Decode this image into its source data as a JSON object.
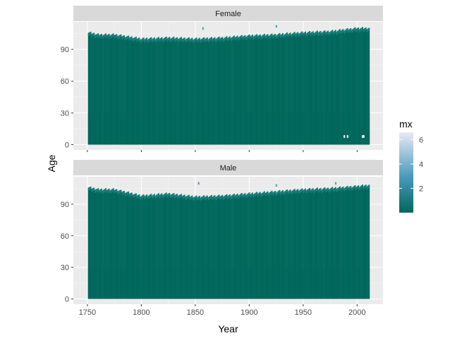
{
  "chart_data": {
    "type": "heatmap",
    "xlabel": "Year",
    "ylabel": "Age",
    "x_range": [
      1751,
      2011
    ],
    "xlim": [
      1737,
      2024
    ],
    "ylim": [
      -5,
      116
    ],
    "x_ticks": [
      1750,
      1800,
      1850,
      1900,
      1950,
      2000
    ],
    "y_ticks": [
      0,
      30,
      60,
      90
    ],
    "grid": true,
    "facets": [
      {
        "name": "Female",
        "top_age_profile": [
          [
            1751,
            106
          ],
          [
            1760,
            104
          ],
          [
            1775,
            104
          ],
          [
            1800,
            100
          ],
          [
            1825,
            101
          ],
          [
            1850,
            100
          ],
          [
            1875,
            101
          ],
          [
            1900,
            103
          ],
          [
            1925,
            104
          ],
          [
            1950,
            106
          ],
          [
            1975,
            107
          ],
          [
            2000,
            110
          ],
          [
            2011,
            110
          ]
        ],
        "sparse_cells": [
          [
            1988,
            8
          ],
          [
            1991,
            8
          ],
          [
            2005,
            8
          ],
          [
            2006,
            8
          ],
          [
            1857,
            110
          ],
          [
            1925,
            112
          ]
        ]
      },
      {
        "name": "Male",
        "top_age_profile": [
          [
            1751,
            106
          ],
          [
            1760,
            104
          ],
          [
            1775,
            104
          ],
          [
            1800,
            98
          ],
          [
            1825,
            100
          ],
          [
            1850,
            97
          ],
          [
            1875,
            98
          ],
          [
            1900,
            100
          ],
          [
            1925,
            102
          ],
          [
            1950,
            104
          ],
          [
            1975,
            105
          ],
          [
            2000,
            107
          ],
          [
            2011,
            108
          ]
        ],
        "sparse_cells": [
          [
            1853,
            110
          ],
          [
            1925,
            108
          ],
          [
            1980,
            110
          ]
        ]
      }
    ],
    "fill_scale": {
      "name": "mx",
      "min": 0.0,
      "max": 6.6,
      "breaks": [
        2,
        4,
        6
      ],
      "colors": [
        "#02665c",
        "#4a9bbc",
        "#e9e8f5"
      ]
    }
  }
}
